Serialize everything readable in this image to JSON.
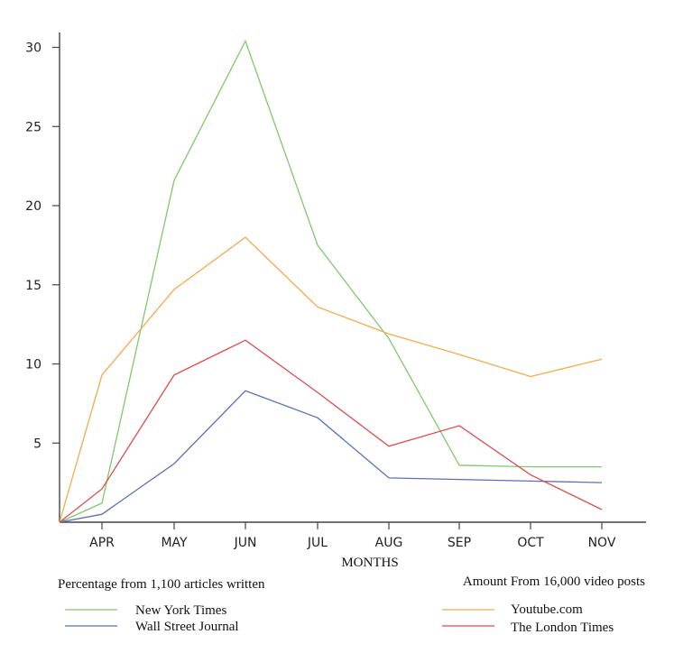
{
  "chart_data": {
    "type": "line",
    "xlabel": "MONTHS",
    "ylabel": "",
    "categories": [
      "",
      "APR",
      "MAY",
      "JUN",
      "JUL",
      "AUG",
      "SEP",
      "OCT",
      "NOV"
    ],
    "yticks": [
      5,
      10,
      15,
      20,
      25,
      30
    ],
    "ylim": [
      0,
      30
    ],
    "grid": false,
    "series": [
      {
        "name": "New York Times",
        "color": "#7ccc6a",
        "values": [
          0,
          1.2,
          21.6,
          30.4,
          17.5,
          11.6,
          3.6,
          3.5,
          3.5
        ]
      },
      {
        "name": "Wall Street Journal",
        "color": "#5a6fb5",
        "values": [
          0,
          0.5,
          3.7,
          8.3,
          6.6,
          2.8,
          2.7,
          2.6,
          2.5
        ]
      },
      {
        "name": "Youtube.com",
        "color": "#f5a94a",
        "values": [
          0,
          9.3,
          14.7,
          18.0,
          13.6,
          11.9,
          10.6,
          9.2,
          10.3
        ]
      },
      {
        "name": "The London Times",
        "color": "#e2494c",
        "values": [
          0,
          2.1,
          9.3,
          11.5,
          8.2,
          4.8,
          6.1,
          3.0,
          0.8
        ]
      }
    ],
    "captions": {
      "left": "Percentage from 1,100 articles written",
      "right": "Amount From 16,000 video posts"
    }
  }
}
